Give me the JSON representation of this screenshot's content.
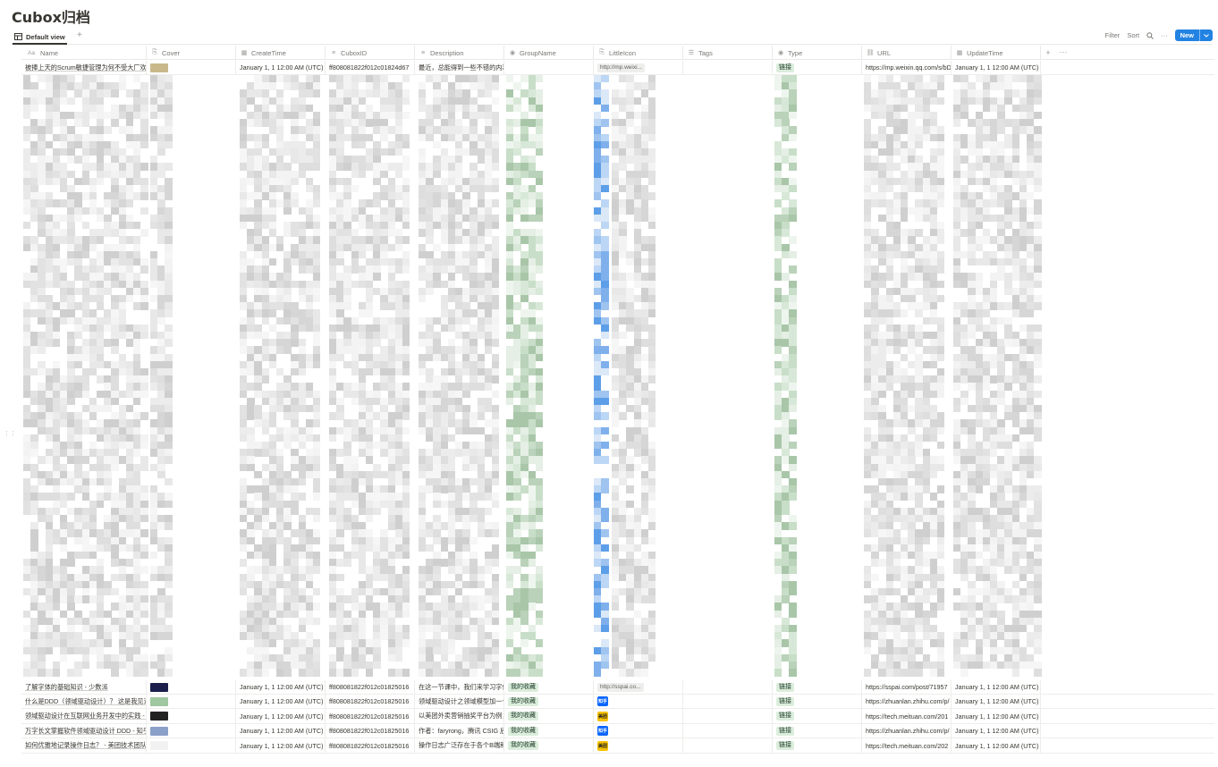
{
  "page": {
    "title": "Cubox归档"
  },
  "view": {
    "tab_label": "Default view",
    "add_label": "+"
  },
  "toolbar": {
    "filter": "Filter",
    "sort": "Sort",
    "more": "···",
    "new_label": "New"
  },
  "columns": [
    {
      "key": "name",
      "label": "Name",
      "icon": "Aa"
    },
    {
      "key": "cover",
      "label": "Cover",
      "icon": "paperclip-icon"
    },
    {
      "key": "createtime",
      "label": "CreateTime",
      "icon": "calendar-icon"
    },
    {
      "key": "cuboxid",
      "label": "CuboxID",
      "icon": "text-icon"
    },
    {
      "key": "description",
      "label": "Description",
      "icon": "text-icon"
    },
    {
      "key": "groupname",
      "label": "GroupName",
      "icon": "select-icon"
    },
    {
      "key": "littleicon",
      "label": "LittleIcon",
      "icon": "paperclip-icon"
    },
    {
      "key": "tags",
      "label": "Tags",
      "icon": "list-icon"
    },
    {
      "key": "type",
      "label": "Type",
      "icon": "select-icon"
    },
    {
      "key": "url",
      "label": "URL",
      "icon": "link-icon"
    },
    {
      "key": "updatetime",
      "label": "UpdateTime",
      "icon": "calendar-icon"
    }
  ],
  "rows_top": [
    {
      "name": "被捧上天的Scrum敏捷管理为何不受大厂欢迎",
      "cover_color": "#c9b98a",
      "createtime": "January 1, 1 12:00 AM (UTC)",
      "cuboxid": "ff808081822f012c01824d67",
      "description": "最近，总能得到一些不错的内幕",
      "groupname": "",
      "littleicon": "http://mp.weixi...",
      "littleicon_kind": "chip",
      "tags": "",
      "type": "链接",
      "url": "https://mp.weixin.qq.com/s/bD",
      "updatetime": "January 1, 1 12:00 AM (UTC)"
    }
  ],
  "rows_bottom": [
    {
      "name": "了解字体的基础知识 - 少数派",
      "cover_color": "#1b1f4a",
      "createtime": "January 1, 1 12:00 AM (UTC)",
      "cuboxid": "ff808081822f012c01825016",
      "description": "在这一节课中，我们来学习字体",
      "groupname": "我的收藏",
      "littleicon": "http://sspai.co...",
      "littleicon_kind": "chip",
      "type": "链接",
      "url": "https://sspai.com/post/71957",
      "updatetime": "January 1, 1 12:00 AM (UTC)"
    },
    {
      "name": "什么是DDD（领域驱动设计）？ 这是我见过",
      "cover_color": "#9fc7a0",
      "createtime": "January 1, 1 12:00 AM (UTC)",
      "cuboxid": "ff808081822f012c01825016",
      "description": "领域驱动设计之领域模型加一个",
      "groupname": "我的收藏",
      "littleicon": "知乎",
      "littleicon_kind": "zhihu",
      "type": "链接",
      "url": "https://zhuanlan.zhihu.com/p/",
      "updatetime": "January 1, 1 12:00 AM (UTC)"
    },
    {
      "name": "领域驱动设计在互联网业务开发中的实践 - 美",
      "cover_color": "#222222",
      "createtime": "January 1, 1 12:00 AM (UTC)",
      "cuboxid": "ff808081822f012c01825016",
      "description": "以美团外卖营销抽奖平台为例，",
      "groupname": "我的收藏",
      "littleicon": "美团",
      "littleicon_kind": "meituan",
      "type": "链接",
      "url": "https://tech.meituan.com/201",
      "updatetime": "January 1, 1 12:00 AM (UTC)"
    },
    {
      "name": "万字长文掌握软件领域驱动设计 DDD - 知乎",
      "cover_color": "#8aa0c8",
      "createtime": "January 1, 1 12:00 AM (UTC)",
      "cuboxid": "ff808081822f012c01825016",
      "description": "作者：faryrong，腾讯 CSIG 后",
      "groupname": "我的收藏",
      "littleicon": "知乎",
      "littleicon_kind": "zhihu",
      "type": "链接",
      "url": "https://zhuanlan.zhihu.com/p/",
      "updatetime": "January 1, 1 12:00 AM (UTC)"
    },
    {
      "name": "如何优雅地记录操作日志？ - 美团技术团队",
      "cover_color": "#f2f2f2",
      "createtime": "January 1, 1 12:00 AM (UTC)",
      "cuboxid": "ff808081822f012c01825016",
      "description": "操作日志广泛存在于各个B端和",
      "groupname": "我的收藏",
      "littleicon": "美团",
      "littleicon_kind": "meituan",
      "type": "链接",
      "url": "https://tech.meituan.com/202",
      "updatetime": "January 1, 1 12:00 AM (UTC)"
    }
  ],
  "colors": {
    "accent": "#2383e2",
    "tag_green_bg": "#dbeddb",
    "zhihu_blue": "#0a66ff",
    "meituan_yellow": "#f7c200"
  }
}
